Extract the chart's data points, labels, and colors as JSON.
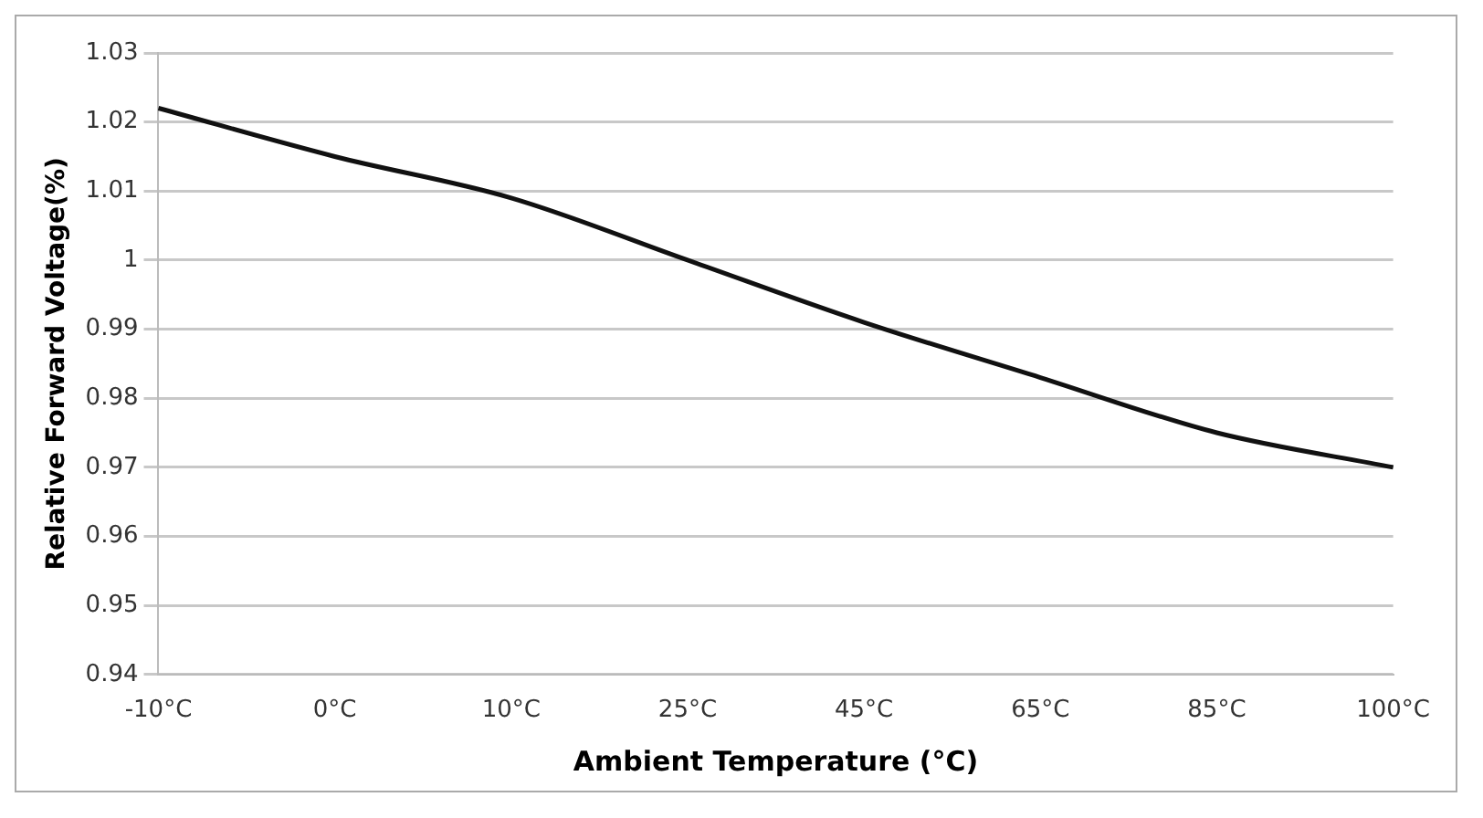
{
  "chart_data": {
    "type": "line",
    "xlabel": "Ambient Temperature (°C)",
    "ylabel": "Relative Forward Voltage(%)",
    "categories": [
      "-10°C",
      "0°C",
      "10°C",
      "25°C",
      "45°C",
      "65°C",
      "85°C",
      "100°C"
    ],
    "series": [
      {
        "color": "#111111",
        "values": [
          1.022,
          1.015,
          1.009,
          1.0,
          0.991,
          0.983,
          0.975,
          0.97
        ]
      }
    ],
    "ylim": [
      0.94,
      1.03
    ],
    "yticks": [
      0.94,
      0.95,
      0.96,
      0.97,
      0.98,
      0.99,
      1,
      1.01,
      1.02,
      1.03
    ],
    "grid": "y",
    "legend": false,
    "marker": "none",
    "line_style": "solid"
  }
}
